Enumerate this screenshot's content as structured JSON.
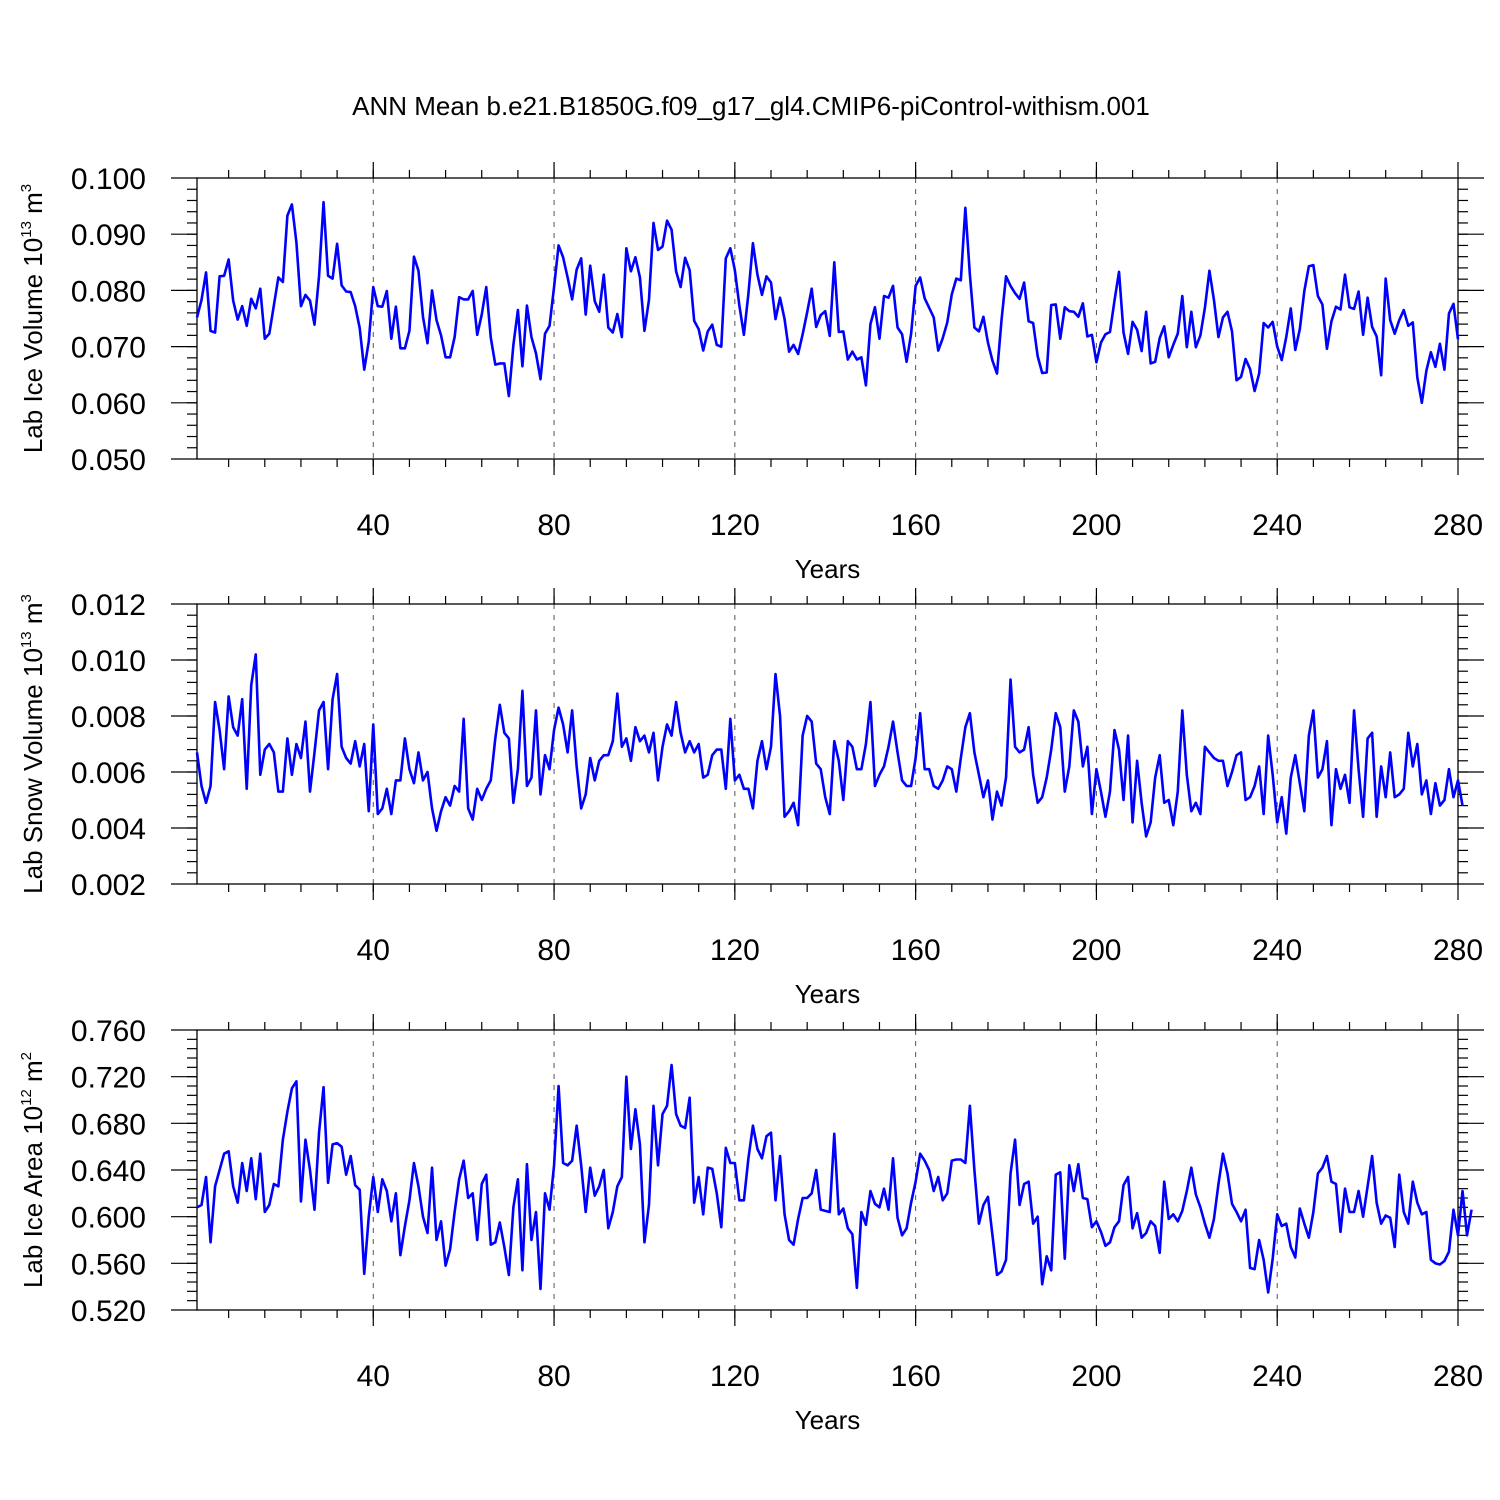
{
  "figure_title": "ANN Mean b.e21.B1850G.f09_g17_gl4.CMIP6-piControl-withism.001",
  "line_color": "#0000ff",
  "chart_data": [
    {
      "type": "line",
      "ylabel_main": "Lab Ice Volume 10",
      "ylabel_exp": "13",
      "ylabel_unit": "m",
      "ylabel_unit_exp": "3",
      "xlabel": "Years",
      "xlim": [
        1,
        280
      ],
      "ylim": [
        0.05,
        0.1
      ],
      "xticks": [
        40,
        80,
        120,
        160,
        200,
        240,
        280
      ],
      "xtick_labels": [
        "40",
        "80",
        "120",
        "160",
        "200",
        "240",
        "280"
      ],
      "yticks": [
        0.05,
        0.06,
        0.07,
        0.08,
        0.09,
        0.1
      ],
      "ytick_labels": [
        "0.050",
        "0.060",
        "0.070",
        "0.080",
        "0.090",
        "0.100"
      ],
      "y_minor_step": 0.002,
      "x_minor_step": 8,
      "x_grid": "dashed at major ticks",
      "series": [
        {
          "color": "#0000ff",
          "values": [
            0.0752,
            0.0783,
            0.0832,
            0.0728,
            0.0725,
            0.0825,
            0.0826,
            0.0855,
            0.0782,
            0.0748,
            0.0772,
            0.0737,
            0.0785,
            0.0768,
            0.0803,
            0.0714,
            0.0723,
            0.0773,
            0.0823,
            0.0815,
            0.0933,
            0.0953,
            0.0885,
            0.0772,
            0.0792,
            0.0782,
            0.0739,
            0.0825,
            0.0957,
            0.0826,
            0.0821,
            0.0883,
            0.0809,
            0.0798,
            0.0797,
            0.0772,
            0.0733,
            0.0659,
            0.0709,
            0.0806,
            0.0772,
            0.0771,
            0.0799,
            0.0714,
            0.0771,
            0.0697,
            0.0697,
            0.0728,
            0.086,
            0.0835,
            0.0753,
            0.0706,
            0.08,
            0.0747,
            0.072,
            0.0681,
            0.0681,
            0.0717,
            0.0788,
            0.0784,
            0.0784,
            0.0799,
            0.0721,
            0.0757,
            0.0806,
            0.0716,
            0.0668,
            0.067,
            0.067,
            0.0612,
            0.0703,
            0.0765,
            0.0665,
            0.0773,
            0.0717,
            0.0688,
            0.0642,
            0.0723,
            0.0737,
            0.0806,
            0.088,
            0.0859,
            0.0823,
            0.0784,
            0.0837,
            0.0857,
            0.0757,
            0.0844,
            0.0781,
            0.0762,
            0.0828,
            0.0734,
            0.0725,
            0.0758,
            0.0717,
            0.0875,
            0.0834,
            0.0859,
            0.0823,
            0.0728,
            0.0783,
            0.092,
            0.0872,
            0.0878,
            0.0924,
            0.0908,
            0.0834,
            0.0806,
            0.0858,
            0.0836,
            0.0746,
            0.0731,
            0.0693,
            0.0727,
            0.0739,
            0.0703,
            0.07,
            0.0857,
            0.0875,
            0.0836,
            0.0773,
            0.0721,
            0.0794,
            0.0884,
            0.0828,
            0.0792,
            0.0825,
            0.0814,
            0.0749,
            0.0787,
            0.0749,
            0.0691,
            0.0703,
            0.0687,
            0.0722,
            0.0761,
            0.0803,
            0.0735,
            0.0756,
            0.0763,
            0.0719,
            0.085,
            0.0726,
            0.0727,
            0.0677,
            0.0691,
            0.0677,
            0.0681,
            0.0631,
            0.074,
            0.077,
            0.0714,
            0.079,
            0.0787,
            0.0808,
            0.0734,
            0.0722,
            0.0673,
            0.0723,
            0.0808,
            0.0823,
            0.0786,
            0.0769,
            0.0752,
            0.0693,
            0.0715,
            0.0743,
            0.0793,
            0.0821,
            0.0818,
            0.0947,
            0.0828,
            0.0734,
            0.0727,
            0.0753,
            0.0707,
            0.0675,
            0.0652,
            0.0747,
            0.0825,
            0.0808,
            0.0795,
            0.0785,
            0.0814,
            0.0745,
            0.0742,
            0.0683,
            0.0653,
            0.0654,
            0.0774,
            0.0775,
            0.0714,
            0.077,
            0.0763,
            0.0762,
            0.0753,
            0.0777,
            0.0718,
            0.0721,
            0.0672,
            0.0707,
            0.0722,
            0.0726,
            0.0782,
            0.0833,
            0.0725,
            0.0687,
            0.0744,
            0.073,
            0.0692,
            0.0762,
            0.067,
            0.0673,
            0.0715,
            0.0736,
            0.0681,
            0.0703,
            0.0723,
            0.079,
            0.0699,
            0.0762,
            0.0699,
            0.072,
            0.0769,
            0.0835,
            0.0783,
            0.0717,
            0.0752,
            0.0762,
            0.0727,
            0.064,
            0.0646,
            0.0678,
            0.066,
            0.0621,
            0.0652,
            0.0742,
            0.0734,
            0.0744,
            0.07,
            0.0676,
            0.0717,
            0.0768,
            0.0694,
            0.0731,
            0.0799,
            0.0843,
            0.0845,
            0.079,
            0.0775,
            0.0696,
            0.0745,
            0.0771,
            0.0766,
            0.0828,
            0.077,
            0.0767,
            0.0798,
            0.0721,
            0.0787,
            0.0735,
            0.0718,
            0.0649,
            0.0821,
            0.0747,
            0.0723,
            0.0747,
            0.0765,
            0.0737,
            0.0743,
            0.0645,
            0.06,
            0.0657,
            0.069,
            0.0664,
            0.0705,
            0.0659,
            0.0759,
            0.0776,
            0.0713
          ]
        }
      ]
    },
    {
      "type": "line",
      "ylabel_main": "Lab Snow Volume 10",
      "ylabel_exp": "13",
      "ylabel_unit": "m",
      "ylabel_unit_exp": "3",
      "xlabel": "Years",
      "xlim": [
        1,
        280
      ],
      "ylim": [
        0.002,
        0.012
      ],
      "xticks": [
        40,
        80,
        120,
        160,
        200,
        240,
        280
      ],
      "xtick_labels": [
        "40",
        "80",
        "120",
        "160",
        "200",
        "240",
        "280"
      ],
      "yticks": [
        0.002,
        0.004,
        0.006,
        0.008,
        0.01,
        0.012
      ],
      "ytick_labels": [
        "0.002",
        "0.004",
        "0.006",
        "0.008",
        "0.010",
        "0.012"
      ],
      "y_minor_step": 0.0004,
      "x_minor_step": 8,
      "x_grid": "dashed at major ticks",
      "series": [
        {
          "color": "#0000ff",
          "values": [
            0.0067,
            0.0055,
            0.0049,
            0.0055,
            0.0085,
            0.0075,
            0.0061,
            0.0087,
            0.0076,
            0.0073,
            0.0086,
            0.0054,
            0.0091,
            0.0102,
            0.0059,
            0.0068,
            0.007,
            0.0067,
            0.0053,
            0.0053,
            0.0072,
            0.0059,
            0.007,
            0.0065,
            0.0078,
            0.0053,
            0.0067,
            0.0082,
            0.0085,
            0.0061,
            0.0086,
            0.0095,
            0.0069,
            0.0065,
            0.0063,
            0.0071,
            0.0062,
            0.007,
            0.0046,
            0.0077,
            0.0045,
            0.0047,
            0.0054,
            0.0045,
            0.0057,
            0.0057,
            0.0072,
            0.0061,
            0.0056,
            0.0067,
            0.0057,
            0.006,
            0.0047,
            0.0039,
            0.0046,
            0.0051,
            0.0048,
            0.0055,
            0.0053,
            0.0079,
            0.0047,
            0.0043,
            0.0054,
            0.005,
            0.0054,
            0.0057,
            0.0072,
            0.0084,
            0.0074,
            0.0072,
            0.0049,
            0.0061,
            0.0089,
            0.0055,
            0.0058,
            0.0082,
            0.0052,
            0.0066,
            0.0061,
            0.0075,
            0.0083,
            0.0077,
            0.0067,
            0.0082,
            0.0062,
            0.0047,
            0.0052,
            0.0065,
            0.0057,
            0.0064,
            0.0066,
            0.0066,
            0.0071,
            0.0088,
            0.0069,
            0.0072,
            0.0064,
            0.0076,
            0.0071,
            0.0073,
            0.0067,
            0.0074,
            0.0057,
            0.0069,
            0.0077,
            0.0073,
            0.0085,
            0.0074,
            0.0067,
            0.0071,
            0.0067,
            0.007,
            0.0058,
            0.0059,
            0.0066,
            0.0068,
            0.0068,
            0.0054,
            0.0079,
            0.0057,
            0.0059,
            0.0054,
            0.0054,
            0.0047,
            0.0064,
            0.0071,
            0.0061,
            0.0069,
            0.0095,
            0.008,
            0.0044,
            0.0046,
            0.0049,
            0.0041,
            0.0073,
            0.008,
            0.0078,
            0.0063,
            0.0061,
            0.0051,
            0.0045,
            0.0071,
            0.0064,
            0.005,
            0.0071,
            0.0069,
            0.0061,
            0.0061,
            0.007,
            0.0085,
            0.0055,
            0.0059,
            0.0062,
            0.0069,
            0.0078,
            0.0067,
            0.0057,
            0.0055,
            0.0055,
            0.0065,
            0.0081,
            0.0061,
            0.0061,
            0.0055,
            0.0054,
            0.0057,
            0.0062,
            0.0061,
            0.0053,
            0.0065,
            0.0076,
            0.0081,
            0.0067,
            0.0059,
            0.0051,
            0.0057,
            0.0043,
            0.0053,
            0.0048,
            0.0058,
            0.0093,
            0.0069,
            0.0067,
            0.0068,
            0.0076,
            0.0059,
            0.0049,
            0.0051,
            0.0058,
            0.0068,
            0.0081,
            0.0076,
            0.0053,
            0.0062,
            0.0082,
            0.0078,
            0.0062,
            0.0069,
            0.0045,
            0.0061,
            0.0053,
            0.0044,
            0.0053,
            0.0075,
            0.0068,
            0.005,
            0.0073,
            0.0042,
            0.0064,
            0.0049,
            0.0037,
            0.0042,
            0.0058,
            0.0066,
            0.0049,
            0.005,
            0.0041,
            0.0053,
            0.0082,
            0.0059,
            0.0046,
            0.0049,
            0.0045,
            0.0069,
            0.0067,
            0.0065,
            0.0064,
            0.0064,
            0.0055,
            0.006,
            0.0066,
            0.0067,
            0.005,
            0.0051,
            0.0055,
            0.0062,
            0.0045,
            0.0073,
            0.0059,
            0.0042,
            0.0051,
            0.0038,
            0.0058,
            0.0066,
            0.0056,
            0.0046,
            0.0073,
            0.0082,
            0.0058,
            0.0061,
            0.0071,
            0.0041,
            0.0061,
            0.0054,
            0.0059,
            0.0049,
            0.0082,
            0.0061,
            0.0044,
            0.0072,
            0.0074,
            0.0044,
            0.0062,
            0.0051,
            0.0067,
            0.0051,
            0.0052,
            0.0054,
            0.0074,
            0.0062,
            0.007,
            0.0052,
            0.0057,
            0.0045,
            0.0056,
            0.0048,
            0.005,
            0.0061,
            0.0051,
            0.0057,
            0.0048
          ]
        }
      ]
    },
    {
      "type": "line",
      "ylabel_main": "Lab Ice Area 10",
      "ylabel_exp": "12",
      "ylabel_unit": "m",
      "ylabel_unit_exp": "2",
      "xlabel": "Years",
      "xlim": [
        1,
        280
      ],
      "ylim": [
        0.52,
        0.76
      ],
      "xticks": [
        40,
        80,
        120,
        160,
        200,
        240,
        280
      ],
      "xtick_labels": [
        "40",
        "80",
        "120",
        "160",
        "200",
        "240",
        "280"
      ],
      "yticks": [
        0.52,
        0.56,
        0.6,
        0.64,
        0.68,
        0.72,
        0.76
      ],
      "ytick_labels": [
        "0.520",
        "0.560",
        "0.600",
        "0.640",
        "0.680",
        "0.720",
        "0.760"
      ],
      "y_minor_step": 0.008,
      "x_minor_step": 8,
      "x_grid": "dashed at major ticks",
      "series": [
        {
          "color": "#0000ff",
          "values": [
            0.608,
            0.61,
            0.634,
            0.578,
            0.626,
            0.64,
            0.654,
            0.656,
            0.626,
            0.612,
            0.646,
            0.622,
            0.65,
            0.615,
            0.654,
            0.604,
            0.61,
            0.628,
            0.626,
            0.666,
            0.69,
            0.71,
            0.716,
            0.613,
            0.666,
            0.64,
            0.606,
            0.672,
            0.711,
            0.629,
            0.662,
            0.663,
            0.66,
            0.636,
            0.652,
            0.627,
            0.623,
            0.551,
            0.6,
            0.634,
            0.604,
            0.632,
            0.622,
            0.596,
            0.62,
            0.567,
            0.592,
            0.614,
            0.646,
            0.626,
            0.6,
            0.586,
            0.642,
            0.58,
            0.596,
            0.558,
            0.572,
            0.604,
            0.632,
            0.648,
            0.616,
            0.62,
            0.58,
            0.628,
            0.636,
            0.576,
            0.578,
            0.595,
            0.574,
            0.55,
            0.608,
            0.632,
            0.554,
            0.645,
            0.58,
            0.604,
            0.538,
            0.62,
            0.606,
            0.644,
            0.712,
            0.646,
            0.644,
            0.648,
            0.678,
            0.644,
            0.604,
            0.642,
            0.618,
            0.626,
            0.64,
            0.59,
            0.604,
            0.626,
            0.634,
            0.72,
            0.658,
            0.692,
            0.662,
            0.578,
            0.61,
            0.695,
            0.644,
            0.688,
            0.695,
            0.73,
            0.688,
            0.678,
            0.676,
            0.702,
            0.612,
            0.634,
            0.602,
            0.642,
            0.641,
            0.62,
            0.591,
            0.659,
            0.646,
            0.646,
            0.614,
            0.614,
            0.65,
            0.678,
            0.658,
            0.65,
            0.669,
            0.672,
            0.614,
            0.652,
            0.602,
            0.58,
            0.576,
            0.598,
            0.616,
            0.616,
            0.62,
            0.64,
            0.606,
            0.605,
            0.604,
            0.671,
            0.602,
            0.607,
            0.59,
            0.585,
            0.539,
            0.604,
            0.593,
            0.622,
            0.611,
            0.608,
            0.624,
            0.606,
            0.65,
            0.599,
            0.584,
            0.59,
            0.612,
            0.63,
            0.654,
            0.648,
            0.64,
            0.622,
            0.634,
            0.614,
            0.62,
            0.648,
            0.649,
            0.649,
            0.646,
            0.695,
            0.64,
            0.594,
            0.61,
            0.617,
            0.584,
            0.55,
            0.553,
            0.563,
            0.637,
            0.666,
            0.61,
            0.628,
            0.63,
            0.594,
            0.6,
            0.542,
            0.566,
            0.554,
            0.636,
            0.638,
            0.564,
            0.644,
            0.622,
            0.645,
            0.616,
            0.615,
            0.591,
            0.596,
            0.587,
            0.575,
            0.578,
            0.591,
            0.596,
            0.627,
            0.634,
            0.59,
            0.603,
            0.582,
            0.586,
            0.596,
            0.592,
            0.569,
            0.63,
            0.598,
            0.602,
            0.596,
            0.605,
            0.622,
            0.642,
            0.619,
            0.608,
            0.594,
            0.582,
            0.598,
            0.628,
            0.654,
            0.637,
            0.611,
            0.604,
            0.596,
            0.606,
            0.556,
            0.555,
            0.58,
            0.563,
            0.535,
            0.564,
            0.602,
            0.592,
            0.594,
            0.574,
            0.565,
            0.607,
            0.594,
            0.582,
            0.604,
            0.637,
            0.642,
            0.652,
            0.63,
            0.628,
            0.587,
            0.624,
            0.604,
            0.604,
            0.622,
            0.6,
            0.626,
            0.652,
            0.612,
            0.594,
            0.601,
            0.599,
            0.574,
            0.636,
            0.604,
            0.594,
            0.63,
            0.612,
            0.602,
            0.604,
            0.563,
            0.56,
            0.559,
            0.562,
            0.57,
            0.606,
            0.584,
            0.622,
            0.584,
            0.606
          ]
        }
      ]
    }
  ]
}
